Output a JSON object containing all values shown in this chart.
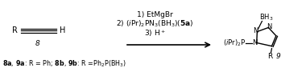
{
  "background_color": "#ffffff",
  "fig_width": 3.8,
  "fig_height": 0.9,
  "dpi": 100,
  "alkyne_label": "8",
  "alkyne_R": "R",
  "alkyne_H": "H",
  "reagents": [
    "1) EtMgBr",
    "2) ($i$Pr)$_2$PN$_3$(BH$_3$)($\\mathbf{5a}$)",
    "3) H$^+$"
  ],
  "product_label": "9",
  "product_BH3": "BH$_3$",
  "product_P_group": "($i$Pr)$_2$P",
  "product_R": "R",
  "footnote": "$\\mathbf{8a}$, $\\mathbf{9a}$: R = Ph; $\\mathbf{8b}$, $\\mathbf{9b}$: R =Ph$_2$P(BH$_3$)",
  "arrow_color": "#000000",
  "text_color": "#000000",
  "line_color": "#000000",
  "font_size_main": 7,
  "font_size_label": 6.5,
  "font_size_footnote": 5.8
}
